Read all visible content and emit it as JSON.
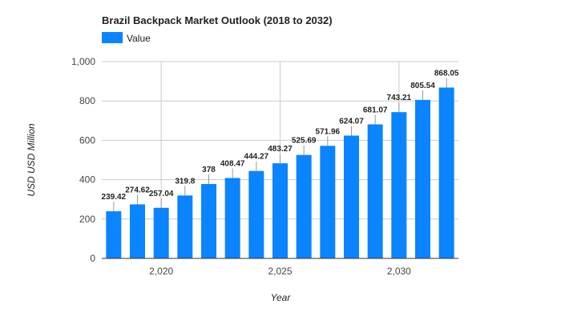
{
  "chart_data": {
    "type": "bar",
    "title": "Brazil Backpack Market Outlook (2018 to 2032)",
    "xlabel": "Year",
    "ylabel": "USD USD Million",
    "legend": {
      "position": "top-left",
      "entries": [
        "Value"
      ]
    },
    "color": "#0a84ff",
    "x": [
      2018,
      2019,
      2020,
      2021,
      2022,
      2023,
      2024,
      2025,
      2026,
      2027,
      2028,
      2029,
      2030,
      2031,
      2032
    ],
    "x_ticks": [
      2020,
      2025,
      2030
    ],
    "x_tick_labels": [
      "2,020",
      "2,025",
      "2,030"
    ],
    "y_ticks": [
      0,
      200,
      400,
      600,
      800,
      1000
    ],
    "y_tick_labels": [
      "0",
      "200",
      "400",
      "600",
      "800",
      "1,000"
    ],
    "ylim": [
      0,
      1000
    ],
    "grid": true,
    "series": [
      {
        "name": "Value",
        "values": [
          239.42,
          274.62,
          257.04,
          319.8,
          378,
          408.47,
          444.27,
          483.27,
          525.69,
          571.96,
          624.07,
          681.07,
          743.21,
          805.54,
          868.05
        ],
        "labels": [
          "239.42",
          "274.62",
          "257.04",
          "319.8",
          "378",
          "408.47",
          "444.27",
          "483.27",
          "525.69",
          "571.96",
          "624.07",
          "681.07",
          "743.21",
          "805.54",
          "868.05"
        ]
      }
    ]
  }
}
